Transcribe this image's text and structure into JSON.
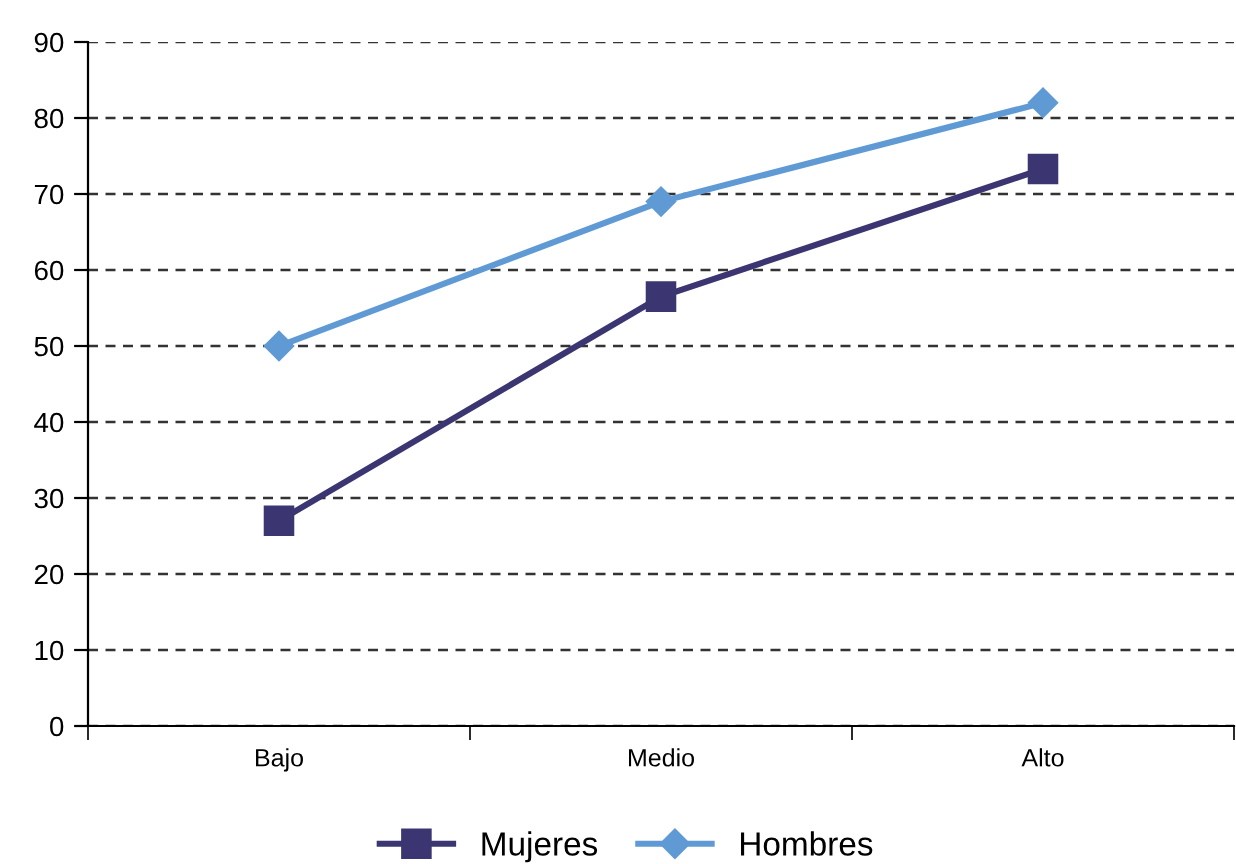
{
  "chart_data": {
    "type": "line",
    "categories": [
      "Bajo",
      "Medio",
      "Alto"
    ],
    "series": [
      {
        "name": "Mujeres",
        "color": "#3b3671",
        "values": [
          27,
          56.5,
          73.3
        ],
        "marker": "square"
      },
      {
        "name": "Hombres",
        "color": "#5f9ad4",
        "values": [
          50,
          69,
          82
        ],
        "marker": "diamond"
      }
    ],
    "ylim": [
      0,
      90
    ],
    "yticks": [
      0,
      10,
      20,
      30,
      40,
      50,
      60,
      70,
      80,
      90
    ],
    "grid": "y",
    "legend": "bottom",
    "line_style": "solid"
  }
}
